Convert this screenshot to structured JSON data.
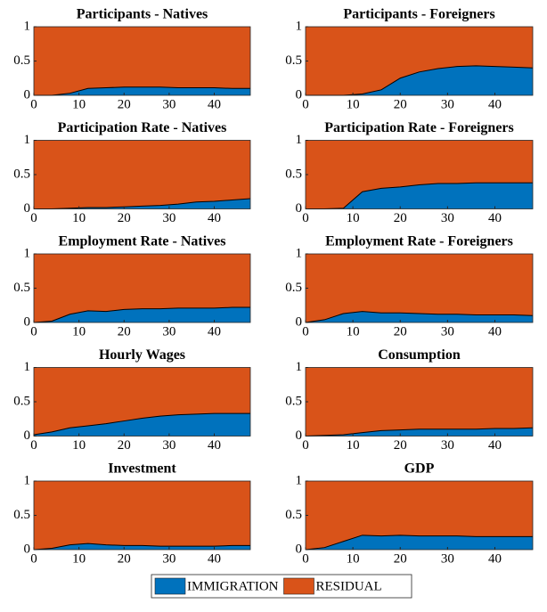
{
  "chart_data": [
    {
      "type": "area",
      "stacked": true,
      "title": "Participants - Natives",
      "x": [
        0,
        4,
        8,
        12,
        16,
        20,
        24,
        28,
        32,
        36,
        40,
        44,
        48
      ],
      "series": [
        {
          "name": "IMMIGRATION",
          "color": "#0072BD",
          "values": [
            0,
            0,
            0.03,
            0.1,
            0.11,
            0.12,
            0.12,
            0.12,
            0.11,
            0.11,
            0.11,
            0.1,
            0.1
          ]
        },
        {
          "name": "RESIDUAL",
          "color": "#D95319",
          "values": [
            1,
            1,
            0.97,
            0.9,
            0.89,
            0.88,
            0.88,
            0.88,
            0.89,
            0.89,
            0.89,
            0.9,
            0.9
          ]
        }
      ],
      "xlim": [
        0,
        48
      ],
      "ylim": [
        0,
        1
      ],
      "xticks": [
        0,
        10,
        20,
        30,
        40
      ],
      "yticks": [
        0,
        0.5,
        1
      ]
    },
    {
      "type": "area",
      "stacked": true,
      "title": "Participants - Foreigners",
      "x": [
        0,
        4,
        8,
        12,
        16,
        20,
        24,
        28,
        32,
        36,
        40,
        44,
        48
      ],
      "series": [
        {
          "name": "IMMIGRATION",
          "color": "#0072BD",
          "values": [
            0,
            0,
            0,
            0.02,
            0.08,
            0.25,
            0.34,
            0.39,
            0.42,
            0.43,
            0.42,
            0.41,
            0.4
          ]
        },
        {
          "name": "RESIDUAL",
          "color": "#D95319",
          "values": [
            1,
            1,
            1,
            0.98,
            0.92,
            0.75,
            0.66,
            0.61,
            0.58,
            0.57,
            0.58,
            0.59,
            0.6
          ]
        }
      ],
      "xlim": [
        0,
        48
      ],
      "ylim": [
        0,
        1
      ],
      "xticks": [
        0,
        10,
        20,
        30,
        40
      ],
      "yticks": [
        0,
        0.5,
        1
      ]
    },
    {
      "type": "area",
      "stacked": true,
      "title": "Participation Rate - Natives",
      "x": [
        0,
        4,
        8,
        12,
        16,
        20,
        24,
        28,
        32,
        36,
        40,
        44,
        48
      ],
      "series": [
        {
          "name": "IMMIGRATION",
          "color": "#0072BD",
          "values": [
            0,
            0,
            0.01,
            0.02,
            0.02,
            0.03,
            0.04,
            0.05,
            0.07,
            0.1,
            0.11,
            0.13,
            0.15
          ]
        },
        {
          "name": "RESIDUAL",
          "color": "#D95319",
          "values": [
            1,
            1,
            0.99,
            0.98,
            0.98,
            0.97,
            0.96,
            0.95,
            0.93,
            0.9,
            0.89,
            0.87,
            0.85
          ]
        }
      ],
      "xlim": [
        0,
        48
      ],
      "ylim": [
        0,
        1
      ],
      "xticks": [
        0,
        10,
        20,
        30,
        40
      ],
      "yticks": [
        0,
        0.5,
        1
      ]
    },
    {
      "type": "area",
      "stacked": true,
      "title": "Participation Rate - Foreigners",
      "x": [
        0,
        4,
        8,
        12,
        16,
        20,
        24,
        28,
        32,
        36,
        40,
        44,
        48
      ],
      "series": [
        {
          "name": "IMMIGRATION",
          "color": "#0072BD",
          "values": [
            0,
            0,
            0.01,
            0.25,
            0.3,
            0.32,
            0.35,
            0.37,
            0.37,
            0.38,
            0.38,
            0.38,
            0.38
          ]
        },
        {
          "name": "RESIDUAL",
          "color": "#D95319",
          "values": [
            1,
            1,
            0.99,
            0.75,
            0.7,
            0.68,
            0.65,
            0.63,
            0.63,
            0.62,
            0.62,
            0.62,
            0.62
          ]
        }
      ],
      "xlim": [
        0,
        48
      ],
      "ylim": [
        0,
        1
      ],
      "xticks": [
        0,
        10,
        20,
        30,
        40
      ],
      "yticks": [
        0,
        0.5,
        1
      ]
    },
    {
      "type": "area",
      "stacked": true,
      "title": "Employment Rate - Natives",
      "x": [
        0,
        4,
        8,
        12,
        16,
        20,
        24,
        28,
        32,
        36,
        40,
        44,
        48
      ],
      "series": [
        {
          "name": "IMMIGRATION",
          "color": "#0072BD",
          "values": [
            0,
            0.02,
            0.12,
            0.17,
            0.16,
            0.19,
            0.2,
            0.2,
            0.21,
            0.21,
            0.21,
            0.22,
            0.22
          ]
        },
        {
          "name": "RESIDUAL",
          "color": "#D95319",
          "values": [
            1,
            0.98,
            0.88,
            0.83,
            0.84,
            0.81,
            0.8,
            0.8,
            0.79,
            0.79,
            0.79,
            0.78,
            0.78
          ]
        }
      ],
      "xlim": [
        0,
        48
      ],
      "ylim": [
        0,
        1
      ],
      "xticks": [
        0,
        10,
        20,
        30,
        40
      ],
      "yticks": [
        0,
        0.5,
        1
      ]
    },
    {
      "type": "area",
      "stacked": true,
      "title": "Employment Rate - Foreigners",
      "x": [
        0,
        4,
        8,
        12,
        16,
        20,
        24,
        28,
        32,
        36,
        40,
        44,
        48
      ],
      "series": [
        {
          "name": "IMMIGRATION",
          "color": "#0072BD",
          "values": [
            0,
            0.04,
            0.13,
            0.16,
            0.14,
            0.14,
            0.13,
            0.12,
            0.12,
            0.11,
            0.11,
            0.11,
            0.1
          ]
        },
        {
          "name": "RESIDUAL",
          "color": "#D95319",
          "values": [
            1,
            0.96,
            0.87,
            0.84,
            0.86,
            0.86,
            0.87,
            0.88,
            0.88,
            0.89,
            0.89,
            0.89,
            0.9
          ]
        }
      ],
      "xlim": [
        0,
        48
      ],
      "ylim": [
        0,
        1
      ],
      "xticks": [
        0,
        10,
        20,
        30,
        40
      ],
      "yticks": [
        0,
        0.5,
        1
      ]
    },
    {
      "type": "area",
      "stacked": true,
      "title": "Hourly Wages",
      "x": [
        0,
        4,
        8,
        12,
        16,
        20,
        24,
        28,
        32,
        36,
        40,
        44,
        48
      ],
      "series": [
        {
          "name": "IMMIGRATION",
          "color": "#0072BD",
          "values": [
            0.02,
            0.06,
            0.12,
            0.15,
            0.18,
            0.22,
            0.26,
            0.29,
            0.31,
            0.32,
            0.33,
            0.33,
            0.33
          ]
        },
        {
          "name": "RESIDUAL",
          "color": "#D95319",
          "values": [
            0.98,
            0.94,
            0.88,
            0.85,
            0.82,
            0.78,
            0.74,
            0.71,
            0.69,
            0.68,
            0.67,
            0.67,
            0.67
          ]
        }
      ],
      "xlim": [
        0,
        48
      ],
      "ylim": [
        0,
        1
      ],
      "xticks": [
        0,
        10,
        20,
        30,
        40
      ],
      "yticks": [
        0,
        0.5,
        1
      ]
    },
    {
      "type": "area",
      "stacked": true,
      "title": "Consumption",
      "x": [
        0,
        4,
        8,
        12,
        16,
        20,
        24,
        28,
        32,
        36,
        40,
        44,
        48
      ],
      "series": [
        {
          "name": "IMMIGRATION",
          "color": "#0072BD",
          "values": [
            0,
            0.01,
            0.02,
            0.05,
            0.08,
            0.09,
            0.1,
            0.1,
            0.1,
            0.1,
            0.11,
            0.11,
            0.12
          ]
        },
        {
          "name": "RESIDUAL",
          "color": "#D95319",
          "values": [
            1,
            0.99,
            0.98,
            0.95,
            0.92,
            0.91,
            0.9,
            0.9,
            0.9,
            0.9,
            0.89,
            0.89,
            0.88
          ]
        }
      ],
      "xlim": [
        0,
        48
      ],
      "ylim": [
        0,
        1
      ],
      "xticks": [
        0,
        10,
        20,
        30,
        40
      ],
      "yticks": [
        0,
        0.5,
        1
      ]
    },
    {
      "type": "area",
      "stacked": true,
      "title": "Investment",
      "x": [
        0,
        4,
        8,
        12,
        16,
        20,
        24,
        28,
        32,
        36,
        40,
        44,
        48
      ],
      "series": [
        {
          "name": "IMMIGRATION",
          "color": "#0072BD",
          "values": [
            0,
            0.02,
            0.07,
            0.09,
            0.07,
            0.06,
            0.06,
            0.05,
            0.05,
            0.05,
            0.05,
            0.06,
            0.06
          ]
        },
        {
          "name": "RESIDUAL",
          "color": "#D95319",
          "values": [
            1,
            0.98,
            0.93,
            0.91,
            0.93,
            0.94,
            0.94,
            0.95,
            0.95,
            0.95,
            0.95,
            0.94,
            0.94
          ]
        }
      ],
      "xlim": [
        0,
        48
      ],
      "ylim": [
        0,
        1
      ],
      "xticks": [
        0,
        10,
        20,
        30,
        40
      ],
      "yticks": [
        0,
        0.5,
        1
      ]
    },
    {
      "type": "area",
      "stacked": true,
      "title": "GDP",
      "x": [
        0,
        4,
        8,
        12,
        16,
        20,
        24,
        28,
        32,
        36,
        40,
        44,
        48
      ],
      "series": [
        {
          "name": "IMMIGRATION",
          "color": "#0072BD",
          "values": [
            0,
            0.03,
            0.12,
            0.21,
            0.2,
            0.21,
            0.2,
            0.2,
            0.2,
            0.19,
            0.19,
            0.19,
            0.19
          ]
        },
        {
          "name": "RESIDUAL",
          "color": "#D95319",
          "values": [
            1,
            0.97,
            0.88,
            0.79,
            0.8,
            0.79,
            0.8,
            0.8,
            0.8,
            0.81,
            0.81,
            0.81,
            0.81
          ]
        }
      ],
      "xlim": [
        0,
        48
      ],
      "ylim": [
        0,
        1
      ],
      "xticks": [
        0,
        10,
        20,
        30,
        40
      ],
      "yticks": [
        0,
        0.5,
        1
      ]
    }
  ]
}
